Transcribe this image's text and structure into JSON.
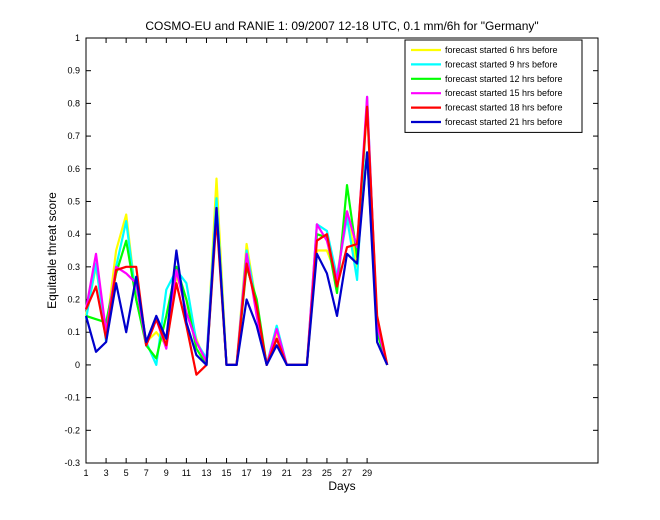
{
  "chart_data": {
    "type": "line",
    "title": "COSMO-EU and RANIE 1: 09/2007 12-18 UTC, 0.1 mm/6h for \"Germany\"",
    "xlabel": "Days",
    "ylabel": "Equitable threat score",
    "xlim": [
      1,
      52
    ],
    "ylim": [
      -0.3,
      1
    ],
    "xticks": [
      1,
      3,
      5,
      7,
      9,
      11,
      13,
      15,
      17,
      19,
      21,
      23,
      25,
      27,
      29
    ],
    "yticks": [
      -0.3,
      -0.2,
      -0.1,
      0,
      0.1,
      0.2,
      0.3,
      0.4,
      0.5,
      0.6,
      0.7,
      0.8,
      0.9,
      1
    ],
    "ytick_labels": [
      "-0.3",
      "-0.2",
      "-0.1",
      "0",
      "0.1",
      "0.2",
      "0.3",
      "0.4",
      "0.5",
      "0.6",
      "0.7",
      "0.8",
      "0.9",
      "1"
    ],
    "grid": false,
    "legend_position": "top-right",
    "x": [
      1,
      2,
      3,
      4,
      5,
      6,
      7,
      8,
      9,
      10,
      11,
      12,
      13,
      14,
      15,
      16,
      17,
      18,
      19,
      20,
      21,
      22,
      23,
      24,
      25,
      26,
      27,
      28,
      29,
      30,
      31
    ],
    "series": [
      {
        "name": "forecast started 6 hrs before",
        "color": "#ffff00",
        "values": [
          0.15,
          0.3,
          0.1,
          0.35,
          0.46,
          0.2,
          0.07,
          0.1,
          0.06,
          0.27,
          0.2,
          0.08,
          0.0,
          0.57,
          0.0,
          0.0,
          0.37,
          0.18,
          0.0,
          0.1,
          0.0,
          0.0,
          0.0,
          0.35,
          0.35,
          0.27,
          0.47,
          0.3,
          0.8,
          0.1,
          0.0
        ]
      },
      {
        "name": "forecast started 9 hrs before",
        "color": "#00ffff",
        "values": [
          0.14,
          0.31,
          0.07,
          0.3,
          0.44,
          0.2,
          0.07,
          0.0,
          0.23,
          0.29,
          0.25,
          0.07,
          0.02,
          0.51,
          0.0,
          0.0,
          0.35,
          0.18,
          0.0,
          0.12,
          0.0,
          0.0,
          0.0,
          0.43,
          0.41,
          0.27,
          0.45,
          0.26,
          0.82,
          0.12,
          0.0
        ]
      },
      {
        "name": "forecast started 12 hrs before",
        "color": "#00ff00",
        "values": [
          0.15,
          0.14,
          0.13,
          0.28,
          0.38,
          0.2,
          0.06,
          0.02,
          0.15,
          0.3,
          0.2,
          0.05,
          0.0,
          0.47,
          0.0,
          0.0,
          0.3,
          0.2,
          0.0,
          0.08,
          0.0,
          0.0,
          0.0,
          0.4,
          0.39,
          0.22,
          0.55,
          0.33,
          0.65,
          0.1,
          0.0
        ]
      },
      {
        "name": "forecast started 15 hrs before",
        "color": "#ff00ff",
        "values": [
          0.17,
          0.34,
          0.1,
          0.3,
          0.28,
          0.25,
          0.06,
          0.14,
          0.05,
          0.29,
          0.16,
          0.07,
          0.01,
          0.48,
          0.0,
          0.0,
          0.34,
          0.15,
          0.0,
          0.11,
          0.0,
          0.0,
          0.0,
          0.43,
          0.38,
          0.26,
          0.47,
          0.36,
          0.82,
          0.12,
          0.0
        ]
      },
      {
        "name": "forecast started 18 hrs before",
        "color": "#ff0000",
        "values": [
          0.17,
          0.24,
          0.08,
          0.29,
          0.3,
          0.3,
          0.06,
          0.14,
          0.06,
          0.25,
          0.12,
          -0.03,
          0.0,
          0.45,
          0.0,
          0.0,
          0.31,
          0.18,
          0.0,
          0.08,
          0.0,
          0.0,
          0.0,
          0.38,
          0.4,
          0.24,
          0.36,
          0.37,
          0.79,
          0.15,
          0.0
        ]
      },
      {
        "name": "forecast started 21 hrs before",
        "color": "#0000cc",
        "values": [
          0.15,
          0.04,
          0.07,
          0.25,
          0.1,
          0.27,
          0.07,
          0.15,
          0.08,
          0.35,
          0.13,
          0.03,
          0.0,
          0.48,
          0.0,
          0.0,
          0.2,
          0.12,
          0.0,
          0.06,
          0.0,
          0.0,
          0.0,
          0.34,
          0.28,
          0.15,
          0.34,
          0.31,
          0.65,
          0.07,
          0.0
        ]
      }
    ]
  }
}
